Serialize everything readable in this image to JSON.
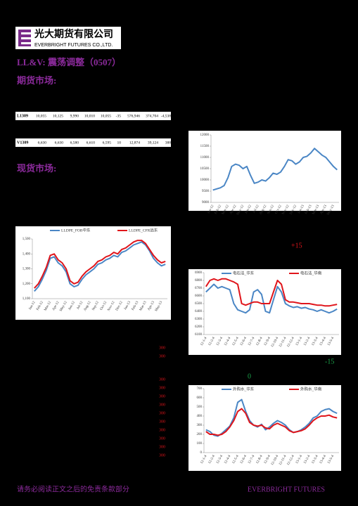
{
  "header": {
    "company_cn": "光大期货有限公司",
    "company_en": "EVERBRIGHT FUTURES CO.,LTD."
  },
  "title": "LL&V:  震荡调整（0507）",
  "sections": [
    "期货市场:",
    "现货市场:"
  ],
  "table": {
    "rows": [
      [
        "L1309",
        "10,055",
        "10,125",
        "9,990",
        "10,010",
        "10,055",
        "-35",
        "576,946",
        "374,704",
        "-4,538"
      ],
      [
        "V1309",
        "6,630",
        "6,630",
        "6,580",
        "6,610",
        "6,595",
        "10",
        "12,874",
        "39,124",
        "388"
      ]
    ]
  },
  "notes": {
    "plus": "+15",
    "minus": "-15",
    "zero": "0"
  },
  "side_numbers": [
    "300",
    "300",
    "300",
    "300",
    "300",
    "300",
    "300",
    "300",
    "300",
    "300",
    "300",
    "300"
  ],
  "footer": {
    "left": "请务必阅读正文之后的免责条款部分",
    "right": "EVERBRIGHT FUTURES"
  },
  "chart_data": [
    {
      "type": "line",
      "categories": [
        "Jan-12",
        null,
        "Feb-12",
        null,
        "Mar-12",
        null,
        "Apr-12",
        null,
        "May-12",
        null,
        "Jun-12",
        null,
        "Jul-12",
        null,
        "Aug-12",
        null,
        "Sep-12",
        null,
        "Oct-12",
        null,
        "Nov-12",
        null,
        "Dec-12",
        null,
        "Jan-13",
        null,
        "Feb-13",
        null,
        "Mar-13",
        null,
        "Apr-13",
        null,
        "May-13",
        null
      ],
      "series": [
        {
          "color": "#4a86c5",
          "values": [
            9550,
            9600,
            9650,
            9750,
            10100,
            10600,
            10700,
            10650,
            10500,
            10600,
            10200,
            9850,
            9900,
            10000,
            9950,
            10100,
            10300,
            10250,
            10350,
            10600,
            10900,
            10850,
            10700,
            10800,
            11000,
            11050,
            11200,
            11400,
            11250,
            11100,
            11000,
            10800,
            10600,
            10450
          ]
        }
      ],
      "ylim": [
        9000,
        12000
      ],
      "yticks": [
        9000,
        9500,
        10000,
        10500,
        11000,
        11500,
        12000
      ]
    },
    {
      "type": "line",
      "categories": [
        "Jan-12",
        null,
        "Feb-12",
        null,
        "Mar-12",
        null,
        "Apr-12",
        null,
        "May-12",
        null,
        "Jun-12",
        null,
        "Jul-12",
        null,
        "Aug-12",
        null,
        "Sep-12",
        null,
        "Oct-12",
        null,
        "Nov-12",
        null,
        "Dec-12",
        null,
        "Jan-13",
        null,
        "Feb-13",
        null,
        "Mar-13",
        null,
        "Apr-13",
        null,
        "May-13",
        null
      ],
      "series": [
        {
          "name": "LLDPE_FOB中东",
          "color": "#4a86c5",
          "values": [
            1150,
            1180,
            1230,
            1290,
            1370,
            1380,
            1340,
            1320,
            1280,
            1200,
            1180,
            1190,
            1230,
            1260,
            1280,
            1300,
            1330,
            1340,
            1360,
            1370,
            1390,
            1380,
            1410,
            1420,
            1440,
            1460,
            1470,
            1480,
            1460,
            1420,
            1370,
            1340,
            1320,
            1330
          ]
        },
        {
          "name": "LLDPE_CFR远东",
          "color": "#e0151b",
          "values": [
            1170,
            1200,
            1250,
            1310,
            1390,
            1400,
            1360,
            1340,
            1300,
            1220,
            1200,
            1210,
            1250,
            1280,
            1300,
            1320,
            1350,
            1360,
            1380,
            1390,
            1410,
            1400,
            1430,
            1440,
            1460,
            1480,
            1490,
            1490,
            1470,
            1430,
            1390,
            1360,
            1340,
            1350
          ]
        }
      ],
      "ylim": [
        1100,
        1500
      ],
      "yticks": [
        {
          "value": 1100,
          "label": "1,100"
        },
        {
          "value": 1200,
          "label": "1,200"
        },
        {
          "value": 1300,
          "label": "1,300"
        },
        {
          "value": 1400,
          "label": "1,400"
        },
        {
          "value": 1500,
          "label": "1,500"
        }
      ]
    },
    {
      "type": "line",
      "categories": [
        "12-1-4",
        null,
        "12-2-4",
        null,
        "12-3-4",
        null,
        "12-4-4",
        null,
        "12-5-4",
        null,
        "12-6-4",
        null,
        "12-7-4",
        null,
        "12-8-4",
        null,
        "12-9-4",
        null,
        "12-10-4",
        null,
        "12-11-4",
        null,
        "12-12-4",
        null,
        "13-1-4",
        null,
        "13-2-4",
        null,
        "13-3-4",
        null,
        "13-4-4",
        null,
        "13-5-4",
        null
      ],
      "series": [
        {
          "name": "电石法_华东",
          "color": "#4a86c5",
          "values": [
            6650,
            6700,
            6750,
            6700,
            6720,
            6700,
            6680,
            6500,
            6420,
            6400,
            6380,
            6420,
            6650,
            6680,
            6620,
            6400,
            6380,
            6550,
            6720,
            6650,
            6500,
            6470,
            6450,
            6460,
            6440,
            6450,
            6430,
            6420,
            6400,
            6420,
            6400,
            6380,
            6400,
            6430
          ]
        },
        {
          "name": "电石法_华南",
          "color": "#e0151b",
          "values": [
            6720,
            6800,
            6820,
            6800,
            6820,
            6820,
            6800,
            6780,
            6750,
            6500,
            6480,
            6500,
            6520,
            6520,
            6500,
            6500,
            6500,
            6650,
            6800,
            6750,
            6550,
            6520,
            6520,
            6510,
            6500,
            6500,
            6500,
            6490,
            6480,
            6480,
            6470,
            6470,
            6480,
            6490
          ]
        }
      ],
      "ylim": [
        6100,
        6900
      ],
      "yticks": [
        6100,
        6200,
        6300,
        6400,
        6500,
        6600,
        6700,
        6800,
        6900
      ]
    },
    {
      "type": "line",
      "categories": [
        "12-1-4",
        null,
        "12-2-4",
        null,
        "12-3-4",
        null,
        "12-4-4",
        null,
        "12-5-4",
        null,
        "12-6-4",
        null,
        "12-7-4",
        null,
        "12-8-4",
        null,
        "12-9-4",
        null,
        "12-10-4",
        null,
        "12-11-4",
        null,
        "12-12-4",
        null,
        "13-1-4",
        null,
        "13-2-4",
        null,
        "13-3-4",
        null,
        "13-4-4",
        null,
        "13-5-4",
        null
      ],
      "series": [
        {
          "name": "外购水_华东",
          "color": "#4a86c5",
          "values": [
            250,
            230,
            190,
            180,
            210,
            250,
            290,
            380,
            550,
            580,
            450,
            350,
            300,
            280,
            310,
            250,
            280,
            320,
            350,
            330,
            300,
            250,
            220,
            230,
            250,
            280,
            320,
            380,
            400,
            450,
            470,
            480,
            450,
            430
          ]
        },
        {
          "name": "外购水_华南",
          "color": "#e0151b",
          "values": [
            230,
            200,
            200,
            190,
            200,
            230,
            280,
            350,
            450,
            480,
            430,
            330,
            300,
            290,
            300,
            270,
            260,
            300,
            320,
            300,
            280,
            240,
            220,
            230,
            240,
            260,
            300,
            350,
            380,
            400,
            400,
            410,
            390,
            380
          ]
        }
      ],
      "ylim": [
        0,
        700
      ],
      "yticks": [
        0,
        100,
        200,
        300,
        400,
        500,
        600,
        700
      ]
    }
  ]
}
